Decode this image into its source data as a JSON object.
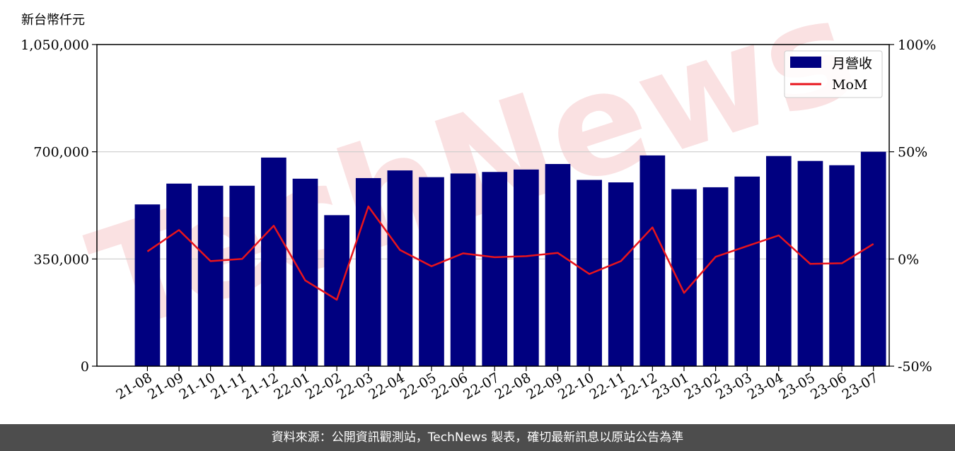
{
  "chart_data": {
    "type": "bar",
    "unit_label": "新台幣仟元",
    "categories": [
      "21-08",
      "21-09",
      "21-10",
      "21-11",
      "21-12",
      "22-01",
      "22-02",
      "22-03",
      "22-04",
      "22-05",
      "22-06",
      "22-07",
      "22-08",
      "22-09",
      "22-10",
      "22-11",
      "22-12",
      "23-01",
      "23-02",
      "23-03",
      "23-04",
      "23-05",
      "23-06",
      "23-07"
    ],
    "series": [
      {
        "name": "月營收",
        "type": "bar",
        "axis": "left",
        "color": "#000080",
        "values": [
          528000,
          596000,
          589000,
          589000,
          681000,
          612000,
          493000,
          614000,
          639000,
          617000,
          629000,
          634000,
          642000,
          660000,
          608000,
          600000,
          688000,
          578000,
          584000,
          619000,
          686000,
          670000,
          656000,
          700000
        ]
      },
      {
        "name": "MoM",
        "type": "line",
        "axis": "right",
        "color": "#e8141c",
        "values": [
          3.5,
          13.5,
          -1.0,
          0.0,
          15.5,
          -10.0,
          -19.0,
          24.5,
          4.2,
          -3.4,
          2.6,
          0.8,
          1.3,
          2.8,
          -7.0,
          -1.0,
          14.7,
          -15.8,
          1.0,
          6.0,
          11.0,
          -2.3,
          -2.0,
          7.0
        ]
      }
    ],
    "left_axis": {
      "ticks": [
        "0",
        "350,000",
        "700,000",
        "1,050,000"
      ],
      "min": 0,
      "max": 1050000
    },
    "right_axis": {
      "ticks": [
        "-50%",
        "0%",
        "50%",
        "100%"
      ],
      "min": -50,
      "max": 100
    },
    "grid": true,
    "legend_position": "top-right"
  },
  "watermark": "TechNews",
  "footer": {
    "text": "資料來源：公開資訊觀測站，TechNews 製表，確切最新訊息以原站公告為準"
  }
}
